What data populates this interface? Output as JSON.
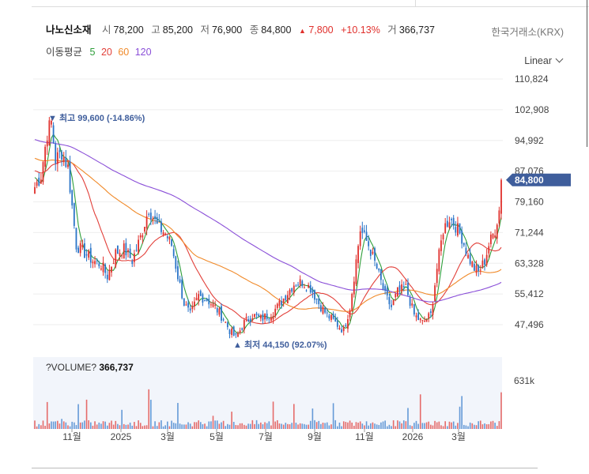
{
  "header": {
    "name": "나노신소재",
    "open_label": "시",
    "open": "78,200",
    "high_label": "고",
    "high": "85,200",
    "low_label": "저",
    "low": "76,900",
    "close_label": "종",
    "close": "84,800",
    "change_arrow": "▲",
    "change": "7,800",
    "change_pct": "+10.13%",
    "volume_label": "거",
    "volume": "366,737"
  },
  "exchange": "한국거래소(KRX)",
  "ma": {
    "label": "이동평균",
    "periods": [
      "5",
      "20",
      "60",
      "120"
    ],
    "colors": [
      "#2e9e3a",
      "#e2403a",
      "#f08a2a",
      "#8a4fd8"
    ]
  },
  "scale_mode": "Linear",
  "colors": {
    "up": "#e0302c",
    "down": "#2a74c8",
    "current_tag": "#3f5e9c"
  },
  "chart_data": {
    "type": "candlestick",
    "y_ticks": [
      "110,824",
      "102,908",
      "94,992",
      "87,076",
      "79,160",
      "71,244",
      "63,328",
      "55,412",
      "47,496"
    ],
    "ylim": [
      41000,
      113000
    ],
    "x_ticks": [
      "11월",
      "2025",
      "3월",
      "5월",
      "7월",
      "9월",
      "11월",
      "2026",
      "3월"
    ],
    "current_price": "84,800",
    "annotations": {
      "high_text": "최고 99,600 (-14.86%)",
      "low_text": "최저 44,150 (92.07%)",
      "high_marker": "▼",
      "low_marker": "▲"
    },
    "price_path": [
      [
        0,
        83000
      ],
      [
        3,
        86000
      ],
      [
        6,
        97000
      ],
      [
        8,
        99600
      ],
      [
        10,
        90000
      ],
      [
        13,
        92000
      ],
      [
        16,
        88000
      ],
      [
        20,
        68000
      ],
      [
        24,
        66000
      ],
      [
        28,
        64000
      ],
      [
        32,
        63000
      ],
      [
        35,
        60000
      ],
      [
        39,
        66000
      ],
      [
        43,
        67000
      ],
      [
        47,
        64000
      ],
      [
        51,
        70000
      ],
      [
        55,
        77500
      ],
      [
        59,
        73000
      ],
      [
        63,
        71000
      ],
      [
        66,
        68000
      ],
      [
        69,
        60000
      ],
      [
        72,
        53000
      ],
      [
        75,
        50000
      ],
      [
        79,
        55000
      ],
      [
        83,
        54000
      ],
      [
        87,
        52000
      ],
      [
        91,
        49000
      ],
      [
        94,
        46000
      ],
      [
        97,
        44150
      ],
      [
        101,
        48000
      ],
      [
        105,
        50000
      ],
      [
        109,
        49000
      ],
      [
        113,
        50000
      ],
      [
        117,
        52000
      ],
      [
        121,
        55000
      ],
      [
        125,
        58000
      ],
      [
        129,
        58500
      ],
      [
        133,
        57000
      ],
      [
        137,
        53000
      ],
      [
        141,
        50000
      ],
      [
        145,
        48000
      ],
      [
        149,
        46000
      ],
      [
        152,
        52000
      ],
      [
        155,
        64000
      ],
      [
        157,
        72000
      ],
      [
        161,
        68000
      ],
      [
        165,
        62000
      ],
      [
        169,
        55000
      ],
      [
        172,
        52000
      ],
      [
        175,
        56000
      ],
      [
        179,
        57000
      ],
      [
        183,
        50000
      ],
      [
        187,
        48000
      ],
      [
        191,
        50000
      ],
      [
        194,
        62000
      ],
      [
        197,
        72000
      ],
      [
        200,
        75000
      ],
      [
        203,
        73000
      ],
      [
        206,
        70000
      ],
      [
        209,
        65000
      ],
      [
        212,
        62000
      ],
      [
        214,
        61000
      ],
      [
        217,
        64000
      ],
      [
        219,
        68000
      ],
      [
        222,
        72000
      ],
      [
        224,
        77000
      ],
      [
        225,
        84800
      ]
    ],
    "volume": {
      "label": "?VOLUME?",
      "current": "366,737",
      "y_tick": "631k",
      "max": 631000
    }
  }
}
